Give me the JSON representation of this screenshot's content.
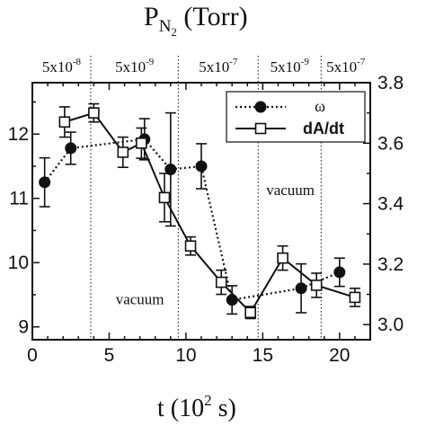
{
  "chart_data": {
    "type": "line",
    "title_main": "P",
    "title_sub": "N",
    "title_subsub": "2",
    "title_rest": " (Torr)",
    "xlabel_main": "t (10",
    "xlabel_sup": "2",
    "xlabel_rest": " s)",
    "xlim": [
      0,
      22
    ],
    "ylim_left": [
      8.8,
      12.8
    ],
    "ylim_right": [
      2.95,
      3.8
    ],
    "x_ticks": [
      0,
      5,
      10,
      15,
      20
    ],
    "y_ticks_left": [
      9,
      10,
      11,
      12
    ],
    "y_ticks_right": [
      3.0,
      3.2,
      3.4,
      3.6,
      3.8
    ],
    "y_tick_labels_right": [
      "3.0",
      "3.2",
      "3.4",
      "3.6",
      "3.8"
    ],
    "grid": false,
    "legend_position": "top-right",
    "pressure_regions": [
      {
        "mantissa": "5x10",
        "exp": "-8",
        "x_start": 0,
        "x_end": 3.8
      },
      {
        "mantissa": "5x10",
        "exp": "-9",
        "x_start": 3.8,
        "x_end": 9.5
      },
      {
        "mantissa": "5x10",
        "exp": "-7",
        "x_start": 9.5,
        "x_end": 14.7
      },
      {
        "mantissa": "5x10",
        "exp": "-9",
        "x_start": 14.7,
        "x_end": 18.8
      },
      {
        "mantissa": "5x10",
        "exp": "-7",
        "x_start": 18.8,
        "x_end": 22
      }
    ],
    "dividers": [
      3.8,
      9.5,
      14.7,
      18.8
    ],
    "annotations": [
      {
        "text": "vacuum",
        "x": 7.0,
        "y": 9.35
      },
      {
        "text": "vacuum",
        "x": 16.8,
        "y": 11.05
      }
    ],
    "series": [
      {
        "name": "ω",
        "axis": "left",
        "style": "dotted",
        "marker": "filled-circle",
        "x": [
          0.8,
          2.5,
          7.3,
          9.0,
          11.0,
          13.0,
          17.5,
          20.0
        ],
        "y": [
          11.25,
          11.78,
          11.92,
          11.45,
          11.5,
          9.42,
          9.6,
          9.85
        ],
        "err": [
          0.38,
          0.25,
          0.32,
          0.88,
          0.35,
          0.22,
          0.38,
          0.22
        ]
      },
      {
        "name": "dA/dt",
        "axis": "right",
        "style": "solid",
        "marker": "open-square",
        "x": [
          2.1,
          4.0,
          5.9,
          7.1,
          8.6,
          10.3,
          12.3,
          14.2,
          16.3,
          18.5,
          21.0
        ],
        "y": [
          3.67,
          3.7,
          3.57,
          3.6,
          3.42,
          3.26,
          3.14,
          3.04,
          3.22,
          3.13,
          3.09
        ],
        "err": [
          0.05,
          0.03,
          0.05,
          0.05,
          0.08,
          0.03,
          0.04,
          0.02,
          0.04,
          0.04,
          0.03
        ]
      }
    ]
  }
}
